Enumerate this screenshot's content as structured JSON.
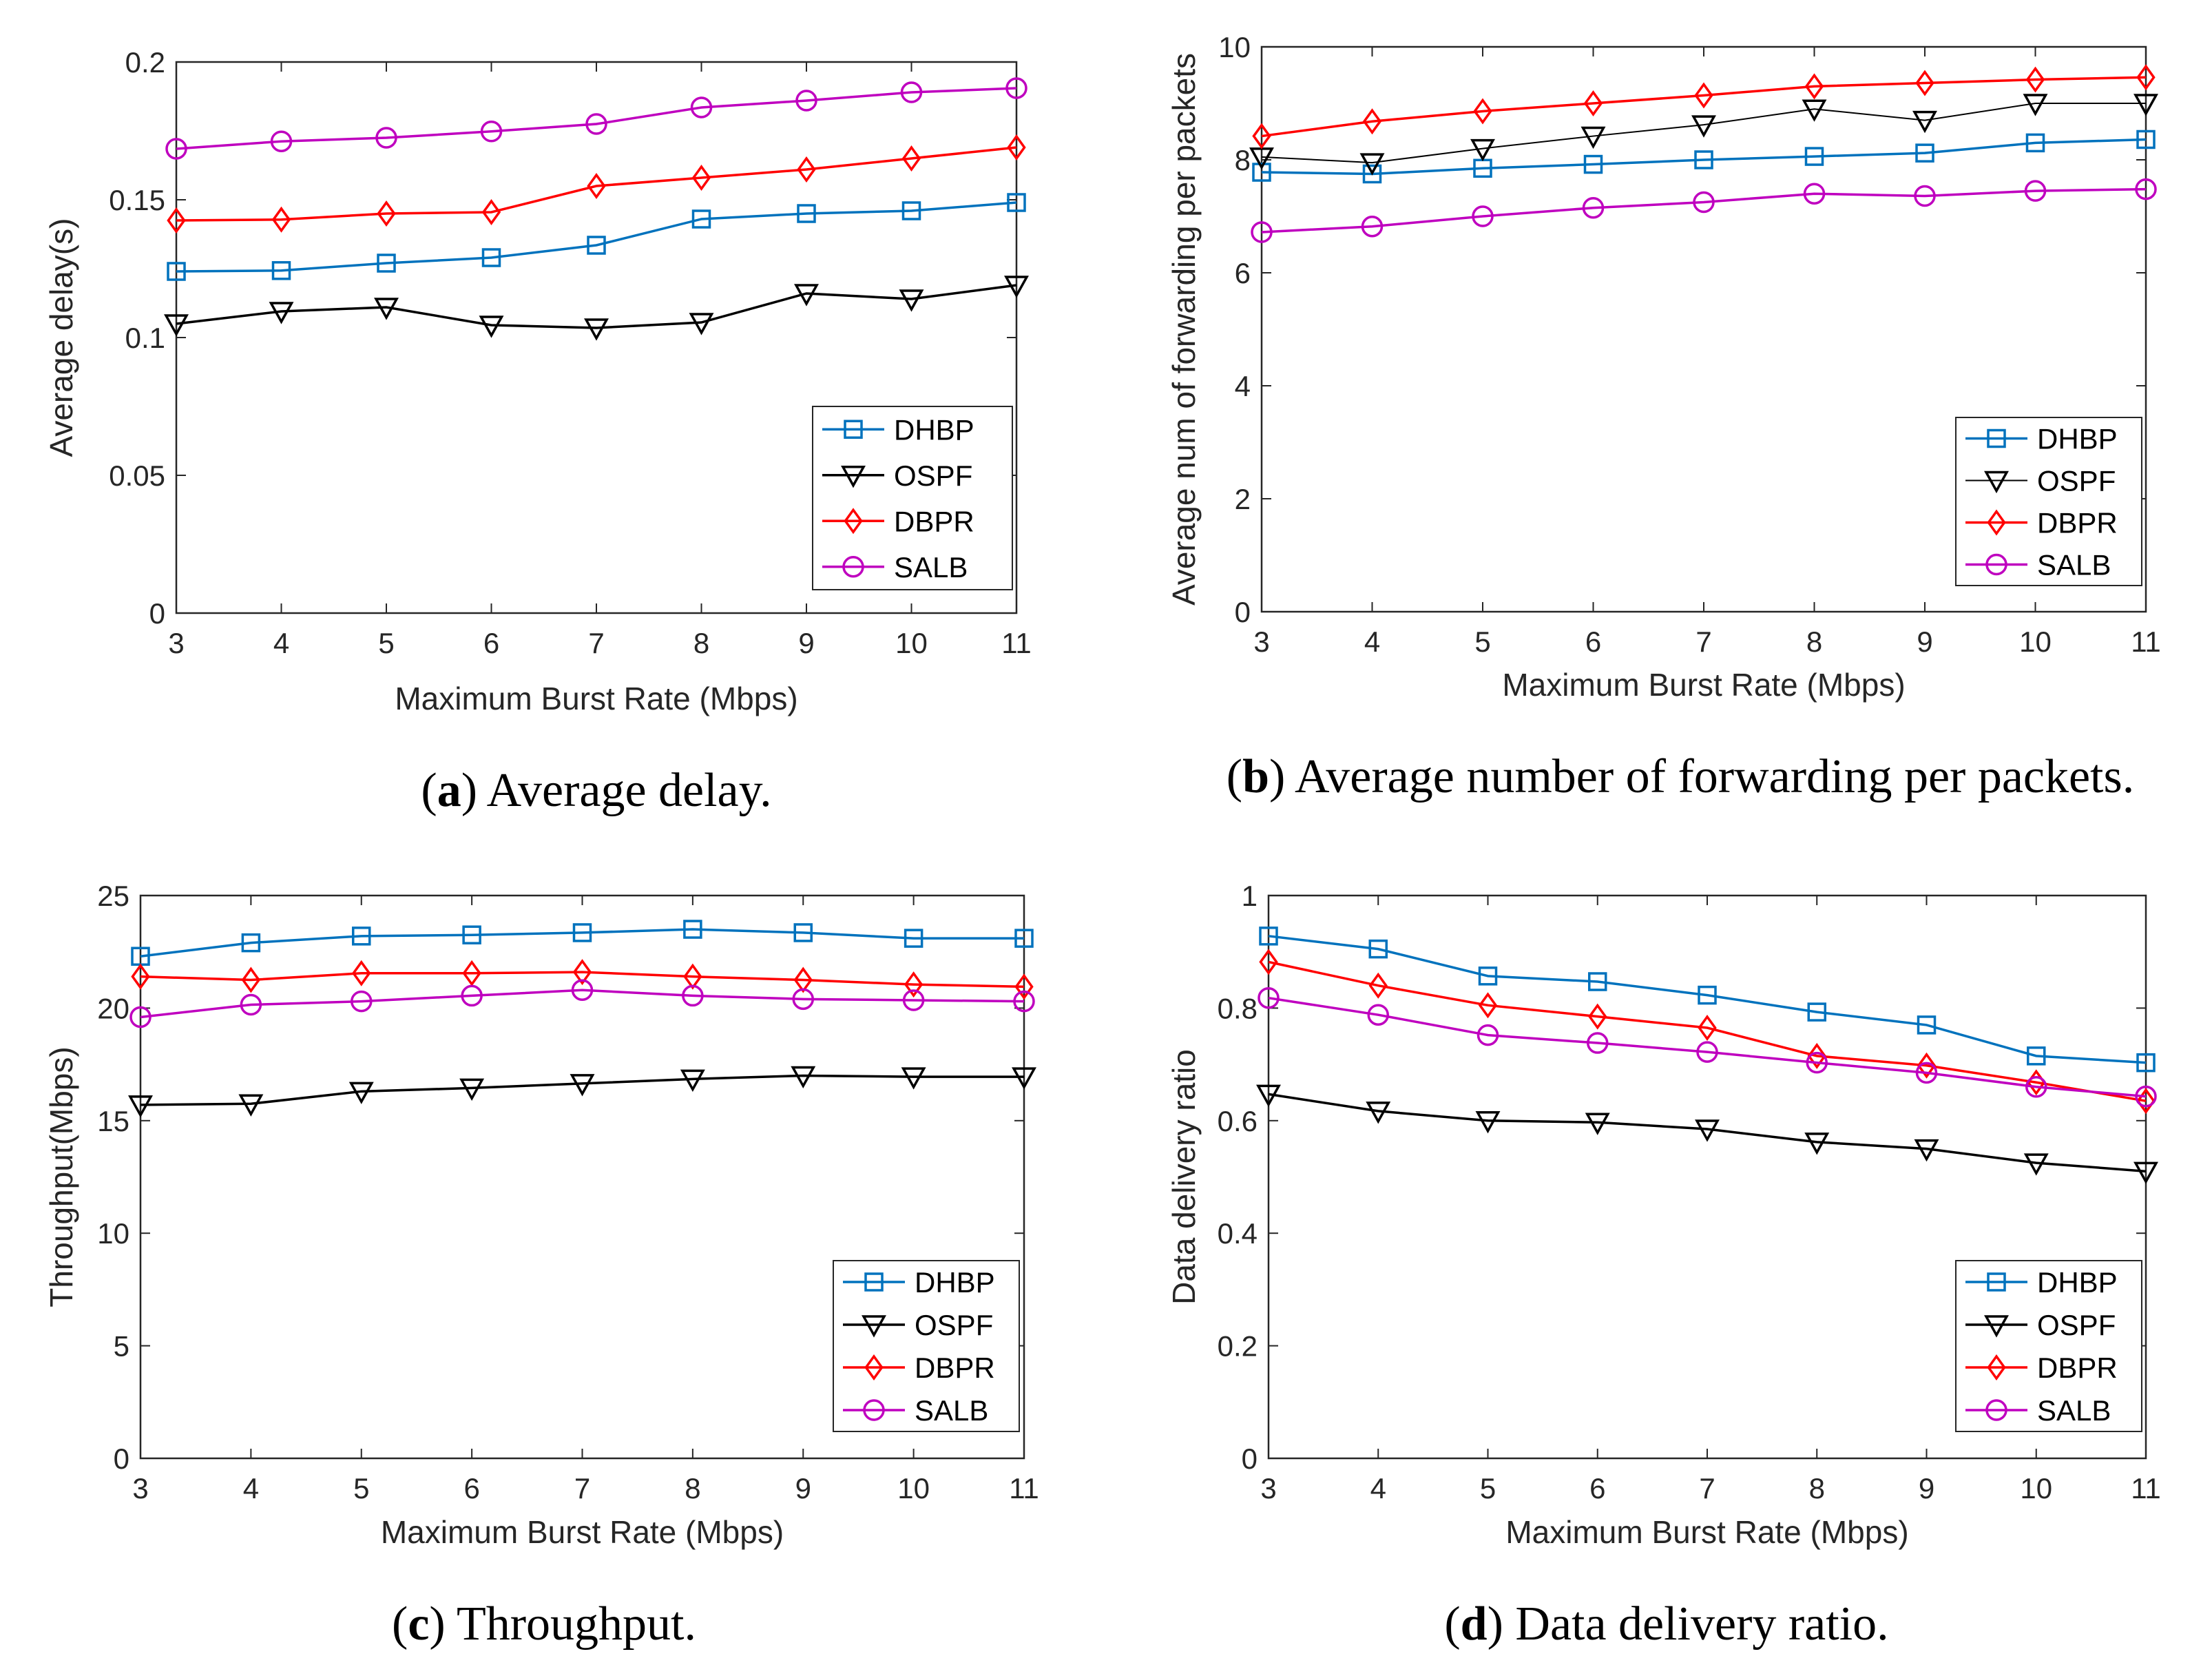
{
  "colors": {
    "DHBP": "#0072BD",
    "OSPF": "#000000",
    "DBPR": "#FF0000",
    "SALB": "#BF00BF",
    "axis": "#262626"
  },
  "chart_data": [
    {
      "type": "line",
      "id": "a",
      "caption_letter": "a",
      "caption_text": "Average delay.",
      "xlabel": "Maximum Burst Rate (Mbps)",
      "ylabel": "Average delay(s)",
      "x": [
        3,
        4,
        5,
        6,
        7,
        8,
        9,
        10,
        11
      ],
      "xlim": [
        3,
        11
      ],
      "ylim": [
        0,
        0.2
      ],
      "yticks": [
        0,
        0.05,
        0.1,
        0.15,
        0.2
      ],
      "ytick_labels": [
        "0",
        "0.05",
        "0.1",
        "0.15",
        "0.2"
      ],
      "legend_position": "bottom-right",
      "series": [
        {
          "name": "DHBP",
          "marker": "square",
          "values": [
            0.124,
            0.1243,
            0.127,
            0.129,
            0.1335,
            0.143,
            0.145,
            0.146,
            0.149
          ]
        },
        {
          "name": "OSPF",
          "marker": "triangle-down",
          "values": [
            0.105,
            0.1095,
            0.111,
            0.1045,
            0.1035,
            0.1055,
            0.116,
            0.114,
            0.119
          ]
        },
        {
          "name": "DBPR",
          "marker": "diamond",
          "values": [
            0.1425,
            0.1428,
            0.145,
            0.1455,
            0.155,
            0.158,
            0.161,
            0.165,
            0.169
          ]
        },
        {
          "name": "SALB",
          "marker": "circle",
          "values": [
            0.1685,
            0.1712,
            0.1725,
            0.1748,
            0.1775,
            0.1835,
            0.186,
            0.189,
            0.1905
          ]
        }
      ]
    },
    {
      "type": "line",
      "id": "b",
      "caption_letter": "b",
      "caption_text": "Average number of forwarding per packets.",
      "xlabel": "Maximum Burst Rate (Mbps)",
      "ylabel": "Average num of forwarding per packets",
      "x": [
        3,
        4,
        5,
        6,
        7,
        8,
        9,
        10,
        11
      ],
      "xlim": [
        3,
        11
      ],
      "ylim": [
        0,
        10
      ],
      "yticks": [
        0,
        2,
        4,
        6,
        8,
        10
      ],
      "ytick_labels": [
        "0",
        "2",
        "4",
        "6",
        "8",
        "10"
      ],
      "legend_position": "bottom-right",
      "series": [
        {
          "name": "DHBP",
          "marker": "square",
          "values": [
            7.78,
            7.75,
            7.85,
            7.92,
            8.0,
            8.06,
            8.12,
            8.3,
            8.36
          ]
        },
        {
          "name": "OSPF",
          "marker": "triangle-down",
          "values": [
            8.05,
            7.95,
            8.2,
            8.42,
            8.62,
            8.9,
            8.7,
            9.0,
            9.0
          ],
          "thin": true
        },
        {
          "name": "DBPR",
          "marker": "diamond",
          "values": [
            8.42,
            8.68,
            8.86,
            9.0,
            9.14,
            9.3,
            9.36,
            9.42,
            9.46
          ]
        },
        {
          "name": "SALB",
          "marker": "circle",
          "values": [
            6.72,
            6.82,
            7.0,
            7.15,
            7.25,
            7.4,
            7.36,
            7.45,
            7.48
          ]
        }
      ]
    },
    {
      "type": "line",
      "id": "c",
      "caption_letter": "c",
      "caption_text": "Throughput.",
      "xlabel": "Maximum Burst Rate (Mbps)",
      "ylabel": "Throughput(Mbps)",
      "x": [
        3,
        4,
        5,
        6,
        7,
        8,
        9,
        10,
        11
      ],
      "xlim": [
        3,
        11
      ],
      "ylim": [
        0,
        25
      ],
      "yticks": [
        0,
        5,
        10,
        15,
        20,
        25
      ],
      "ytick_labels": [
        "0",
        "5",
        "10",
        "15",
        "20",
        "25"
      ],
      "legend_position": "bottom-right",
      "series": [
        {
          "name": "DHBP",
          "marker": "square",
          "values": [
            22.3,
            22.9,
            23.2,
            23.25,
            23.35,
            23.5,
            23.35,
            23.1,
            23.1
          ]
        },
        {
          "name": "OSPF",
          "marker": "triangle-down",
          "values": [
            15.7,
            15.75,
            16.3,
            16.45,
            16.65,
            16.85,
            17.0,
            16.95,
            16.95
          ]
        },
        {
          "name": "DBPR",
          "marker": "diamond",
          "values": [
            21.4,
            21.25,
            21.55,
            21.55,
            21.6,
            21.4,
            21.25,
            21.05,
            20.95
          ]
        },
        {
          "name": "SALB",
          "marker": "circle",
          "values": [
            19.6,
            20.15,
            20.3,
            20.55,
            20.8,
            20.55,
            20.4,
            20.35,
            20.3
          ]
        }
      ]
    },
    {
      "type": "line",
      "id": "d",
      "caption_letter": "d",
      "caption_text": "Data delivery ratio.",
      "xlabel": "Maximum Burst Rate (Mbps)",
      "ylabel": "Data delivery ratio",
      "x": [
        3,
        4,
        5,
        6,
        7,
        8,
        9,
        10,
        11
      ],
      "xlim": [
        3,
        11
      ],
      "ylim": [
        0,
        1
      ],
      "yticks": [
        0,
        0.2,
        0.4,
        0.6,
        0.8,
        1
      ],
      "ytick_labels": [
        "0",
        "0.2",
        "0.4",
        "0.6",
        "0.8",
        "1"
      ],
      "legend_position": "bottom-right",
      "series": [
        {
          "name": "DHBP",
          "marker": "square",
          "values": [
            0.928,
            0.905,
            0.857,
            0.847,
            0.823,
            0.793,
            0.77,
            0.715,
            0.703
          ]
        },
        {
          "name": "OSPF",
          "marker": "triangle-down",
          "values": [
            0.647,
            0.617,
            0.6,
            0.597,
            0.585,
            0.562,
            0.55,
            0.525,
            0.51
          ]
        },
        {
          "name": "DBPR",
          "marker": "diamond",
          "values": [
            0.882,
            0.84,
            0.805,
            0.785,
            0.765,
            0.715,
            0.698,
            0.668,
            0.635
          ]
        },
        {
          "name": "SALB",
          "marker": "circle",
          "values": [
            0.818,
            0.788,
            0.752,
            0.738,
            0.722,
            0.703,
            0.685,
            0.66,
            0.643
          ]
        }
      ]
    }
  ]
}
